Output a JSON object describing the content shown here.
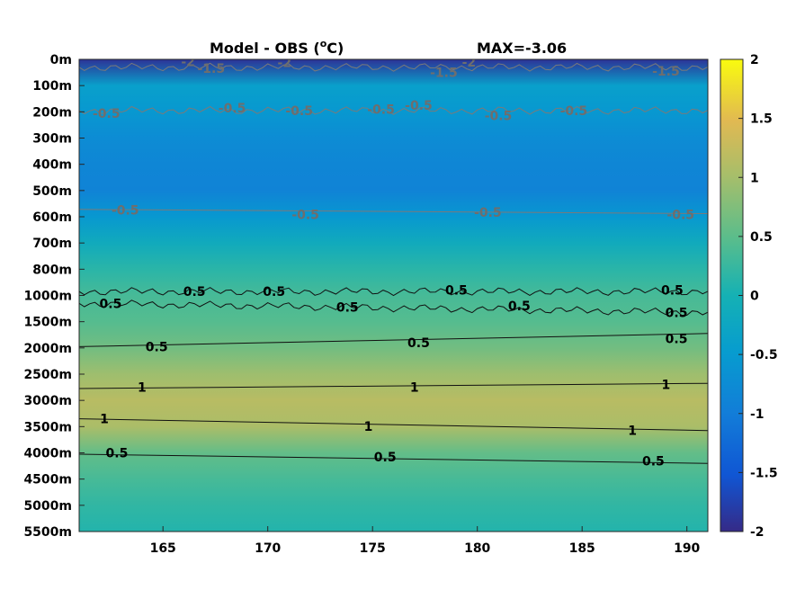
{
  "chart_data": {
    "type": "heatmap",
    "title": "Model - OBS (°C)",
    "title_parts": {
      "main": "Model - OBS (",
      "sup": "o",
      "rest": "C)"
    },
    "max_label": "MAX=-3.06",
    "x": {
      "ticks": [
        165,
        170,
        175,
        180,
        185,
        190
      ],
      "range": [
        161,
        191
      ]
    },
    "y": {
      "categories": [
        "0m",
        "100m",
        "200m",
        "300m",
        "400m",
        "500m",
        "600m",
        "700m",
        "800m",
        "1000m",
        "1500m",
        "2000m",
        "2500m",
        "3000m",
        "3500m",
        "4000m",
        "4500m",
        "5000m",
        "5500m"
      ],
      "depths": [
        0,
        100,
        200,
        300,
        400,
        500,
        600,
        700,
        800,
        1000,
        1500,
        2000,
        2500,
        3000,
        3500,
        4000,
        4500,
        5000,
        5500
      ]
    },
    "colorbar": {
      "range": [
        -2,
        2
      ],
      "ticks": [
        2,
        1.5,
        1,
        0.5,
        0,
        -0.5,
        -1,
        -1.5,
        -2
      ]
    },
    "profile": [
      {
        "depth": "0m",
        "value": -1.9
      },
      {
        "depth": "100m",
        "value": -0.4
      },
      {
        "depth": "200m",
        "value": -0.55
      },
      {
        "depth": "300m",
        "value": -0.75
      },
      {
        "depth": "400m",
        "value": -0.85
      },
      {
        "depth": "500m",
        "value": -0.9
      },
      {
        "depth": "600m",
        "value": -0.55
      },
      {
        "depth": "700m",
        "value": -0.15
      },
      {
        "depth": "800m",
        "value": 0.15
      },
      {
        "depth": "1000m",
        "value": 0.35
      },
      {
        "depth": "1500m",
        "value": 0.45
      },
      {
        "depth": "2000m",
        "value": 0.65
      },
      {
        "depth": "2500m",
        "value": 0.95
      },
      {
        "depth": "3000m",
        "value": 1.15
      },
      {
        "depth": "3500m",
        "value": 1.05
      },
      {
        "depth": "4000m",
        "value": 0.55
      },
      {
        "depth": "4500m",
        "value": 0.35
      },
      {
        "depth": "5000m",
        "value": 0.2
      },
      {
        "depth": "5500m",
        "value": 0.1
      }
    ],
    "contour_labels": [
      {
        "text": "-2",
        "x": 166.2,
        "y": 0.08,
        "color": "gray"
      },
      {
        "text": "-1.5",
        "x": 167.3,
        "y": 0.35,
        "color": "gray"
      },
      {
        "text": "-2",
        "x": 170.8,
        "y": 0.12,
        "color": "gray"
      },
      {
        "text": "-1.5",
        "x": 178.4,
        "y": 0.5,
        "color": "gray"
      },
      {
        "text": "-2",
        "x": 179.6,
        "y": 0.1,
        "color": "gray"
      },
      {
        "text": "-1.5",
        "x": 189.0,
        "y": 0.45,
        "color": "gray"
      },
      {
        "text": "-0.5",
        "x": 162.3,
        "y": 2.05,
        "color": "gray"
      },
      {
        "text": "-0.5",
        "x": 168.3,
        "y": 1.85,
        "color": "gray"
      },
      {
        "text": "-0.5",
        "x": 171.5,
        "y": 1.95,
        "color": "gray"
      },
      {
        "text": "-0.5",
        "x": 175.4,
        "y": 1.9,
        "color": "gray"
      },
      {
        "text": "-0.5",
        "x": 177.2,
        "y": 1.75,
        "color": "gray"
      },
      {
        "text": "-0.5",
        "x": 181.0,
        "y": 2.15,
        "color": "gray"
      },
      {
        "text": "-0.5",
        "x": 184.6,
        "y": 1.95,
        "color": "gray"
      },
      {
        "text": "-0.5",
        "x": 163.2,
        "y": 5.75,
        "color": "gray"
      },
      {
        "text": "-0.5",
        "x": 171.8,
        "y": 5.92,
        "color": "gray"
      },
      {
        "text": "-0.5",
        "x": 180.5,
        "y": 5.82,
        "color": "gray"
      },
      {
        "text": "-0.5",
        "x": 189.7,
        "y": 5.92,
        "color": "gray"
      },
      {
        "text": "0.5",
        "x": 166.5,
        "y": 8.85,
        "color": "black"
      },
      {
        "text": "0.5",
        "x": 170.3,
        "y": 8.85,
        "color": "black"
      },
      {
        "text": "0.5",
        "x": 179.0,
        "y": 8.8,
        "color": "black"
      },
      {
        "text": "0.5",
        "x": 189.3,
        "y": 8.8,
        "color": "black"
      },
      {
        "text": "0.5",
        "x": 162.5,
        "y": 9.3,
        "color": "black"
      },
      {
        "text": "0.5",
        "x": 173.8,
        "y": 9.45,
        "color": "black"
      },
      {
        "text": "0.5",
        "x": 182.0,
        "y": 9.4,
        "color": "black"
      },
      {
        "text": "0.5",
        "x": 189.5,
        "y": 9.65,
        "color": "black"
      },
      {
        "text": "0.5",
        "x": 164.7,
        "y": 10.95,
        "color": "black"
      },
      {
        "text": "0.5",
        "x": 177.2,
        "y": 10.8,
        "color": "black"
      },
      {
        "text": "0.5",
        "x": 189.5,
        "y": 10.65,
        "color": "black"
      },
      {
        "text": "1",
        "x": 164.0,
        "y": 12.5,
        "color": "black"
      },
      {
        "text": "1",
        "x": 177.0,
        "y": 12.5,
        "color": "black"
      },
      {
        "text": "1",
        "x": 189.0,
        "y": 12.4,
        "color": "black"
      },
      {
        "text": "1",
        "x": 162.2,
        "y": 13.7,
        "color": "black"
      },
      {
        "text": "1",
        "x": 174.8,
        "y": 13.98,
        "color": "black"
      },
      {
        "text": "1",
        "x": 187.4,
        "y": 14.15,
        "color": "black"
      },
      {
        "text": "0.5",
        "x": 162.8,
        "y": 15.0,
        "color": "black"
      },
      {
        "text": "0.5",
        "x": 175.6,
        "y": 15.15,
        "color": "black"
      },
      {
        "text": "0.5",
        "x": 188.4,
        "y": 15.3,
        "color": "black"
      }
    ],
    "contour_lines": [
      {
        "color": "black",
        "points": [
          [
            161,
            10.95
          ],
          [
            191,
            10.45
          ]
        ]
      },
      {
        "color": "black",
        "points": [
          [
            161,
            12.55
          ],
          [
            191,
            12.35
          ]
        ]
      },
      {
        "color": "black",
        "points": [
          [
            161,
            13.7
          ],
          [
            191,
            14.15
          ]
        ]
      },
      {
        "color": "black",
        "points": [
          [
            161,
            15.05
          ],
          [
            191,
            15.4
          ]
        ]
      },
      {
        "color": "black",
        "points": [
          [
            161,
            8.85
          ],
          [
            191,
            8.85
          ]
        ],
        "wavy": true
      },
      {
        "color": "black",
        "points": [
          [
            161,
            9.3
          ],
          [
            191,
            9.65
          ]
        ],
        "wavy": true
      },
      {
        "color": "gray",
        "points": [
          [
            161,
            5.72
          ],
          [
            191,
            5.88
          ]
        ]
      },
      {
        "color": "gray",
        "points": [
          [
            161,
            1.95
          ],
          [
            191,
            1.95
          ]
        ],
        "wavy": true
      },
      {
        "color": "gray",
        "points": [
          [
            161,
            0.3
          ],
          [
            191,
            0.3
          ]
        ],
        "wavy": true
      }
    ]
  }
}
